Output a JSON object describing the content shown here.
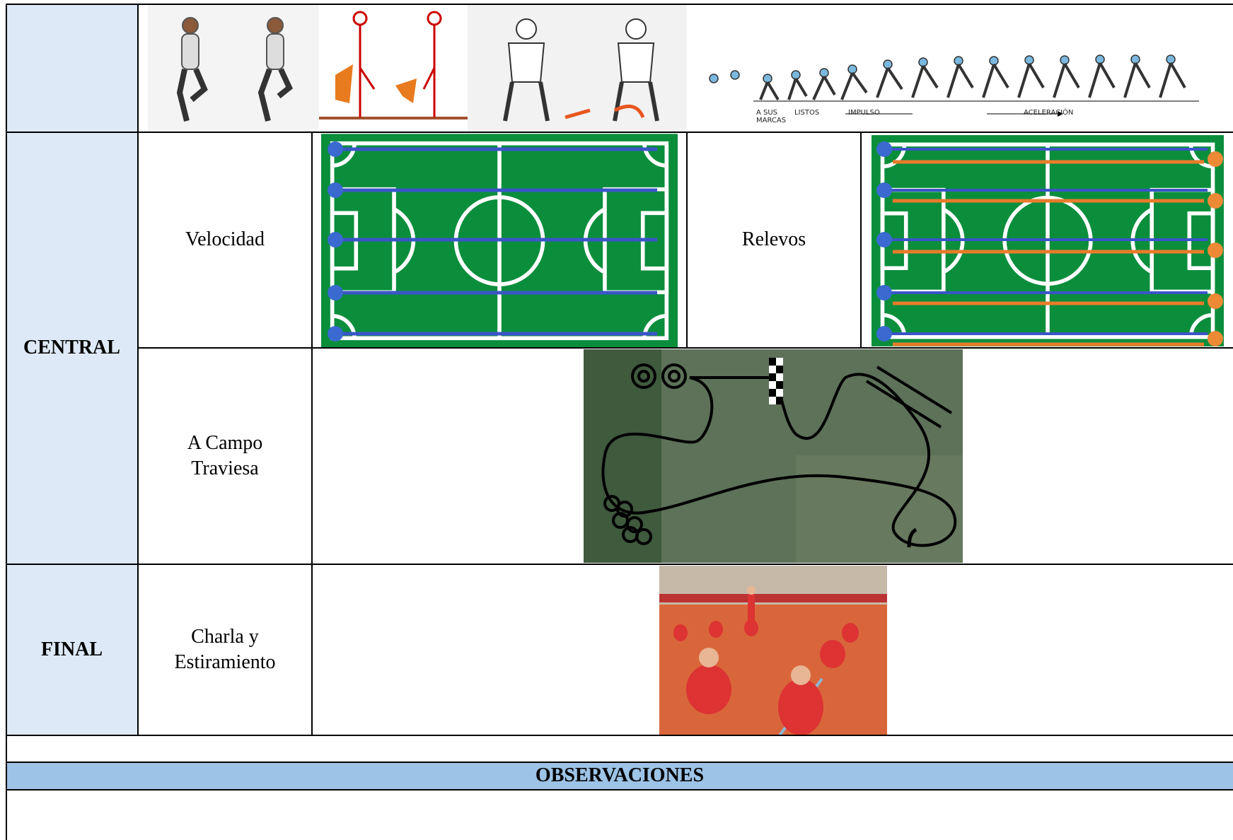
{
  "sections": [
    {
      "phase": "CENTRAL",
      "activities": [
        "Velocidad",
        "Relevos",
        "A Campo Traviesa"
      ]
    },
    {
      "phase": "FINAL",
      "activities": [
        "Charla y Estiramiento"
      ]
    }
  ],
  "sprint_labels": [
    "A SUS MARCAS",
    "LISTOS",
    "IMPULSO",
    "ACELERACIÓN"
  ],
  "observations": {
    "title": "OBSERVACIONES"
  }
}
